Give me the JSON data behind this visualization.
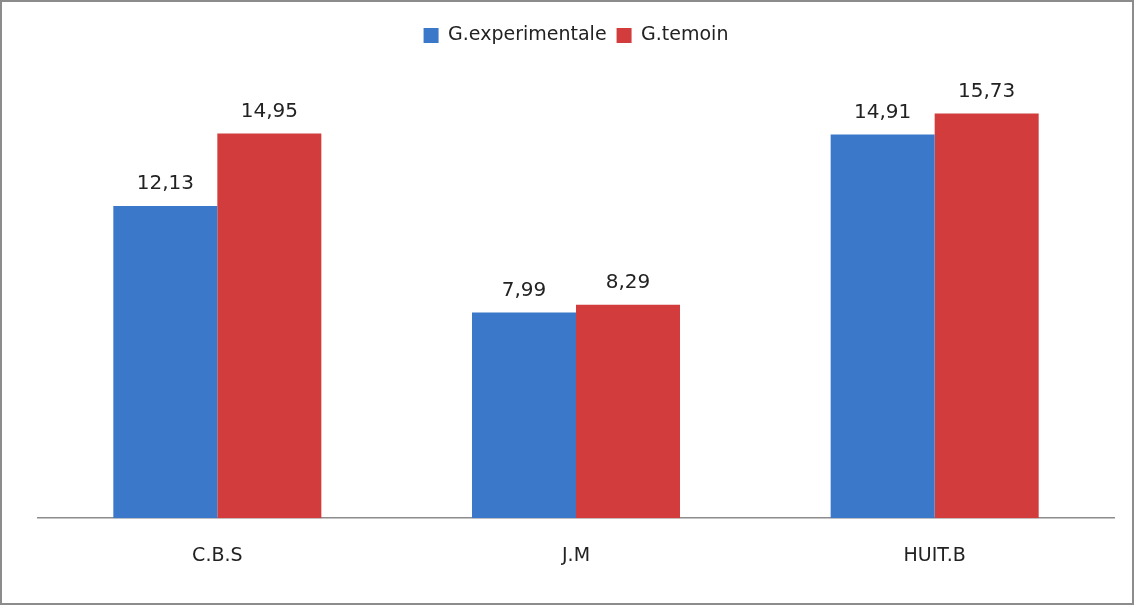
{
  "chart_data": {
    "type": "bar",
    "categories": [
      "C.B.S",
      "J.M",
      "HUIT.B"
    ],
    "series": [
      {
        "name": "G.experimentale",
        "color": "#3b78c9",
        "values": [
          12.13,
          7.99,
          14.91
        ],
        "value_labels": [
          "12,13",
          "7,99",
          "14,91"
        ]
      },
      {
        "name": "G.temoin",
        "color": "#d23c3c",
        "values": [
          14.95,
          8.29,
          15.73
        ],
        "value_labels": [
          "14,95",
          "8,29",
          "15,73"
        ]
      }
    ],
    "legend": "top",
    "grid": false
  }
}
